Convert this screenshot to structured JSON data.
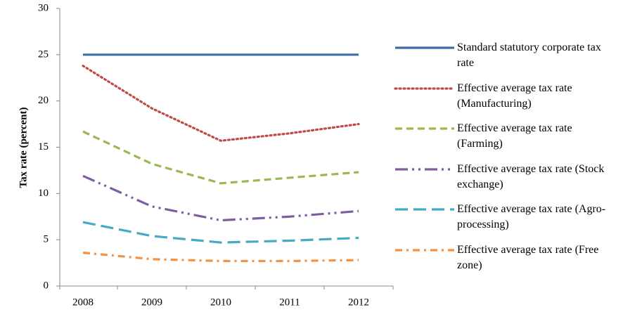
{
  "chart_data": {
    "type": "line",
    "y_label": "Tax rate (percent)",
    "categories": [
      "2008",
      "2009",
      "2010",
      "2011",
      "2012"
    ],
    "ylim": [
      0,
      30
    ],
    "yticks": [
      0,
      5,
      10,
      15,
      20,
      25,
      30
    ],
    "legend": "right",
    "series": [
      {
        "name": "Standard statutory corporate tax rate",
        "color": "#3d6ea5",
        "dash": "solid",
        "values": [
          25,
          25,
          25,
          25,
          25
        ]
      },
      {
        "name": "Effective average tax rate (Manufacturing)",
        "color": "#be4b48",
        "dash": "dotted",
        "values": [
          23.8,
          19.2,
          15.7,
          16.5,
          17.5
        ]
      },
      {
        "name": "Effective average tax rate (Farming)",
        "color": "#98b954",
        "dash": "dashed",
        "values": [
          16.7,
          13.2,
          11.1,
          11.7,
          12.3
        ]
      },
      {
        "name": "Effective average tax rate (Stock exchange)",
        "color": "#7d5fa0",
        "dash": "long-dash-dot-dot",
        "values": [
          11.9,
          8.6,
          7.1,
          7.5,
          8.1
        ]
      },
      {
        "name": "Effective average tax rate (Agro-processing)",
        "color": "#46aac4",
        "dash": "long-dash",
        "values": [
          6.9,
          5.4,
          4.7,
          4.9,
          5.2
        ]
      },
      {
        "name": "Effective average tax rate (Free zone)",
        "color": "#f59140",
        "dash": "dash-dot",
        "values": [
          3.6,
          2.9,
          2.7,
          2.7,
          2.8
        ]
      }
    ]
  }
}
